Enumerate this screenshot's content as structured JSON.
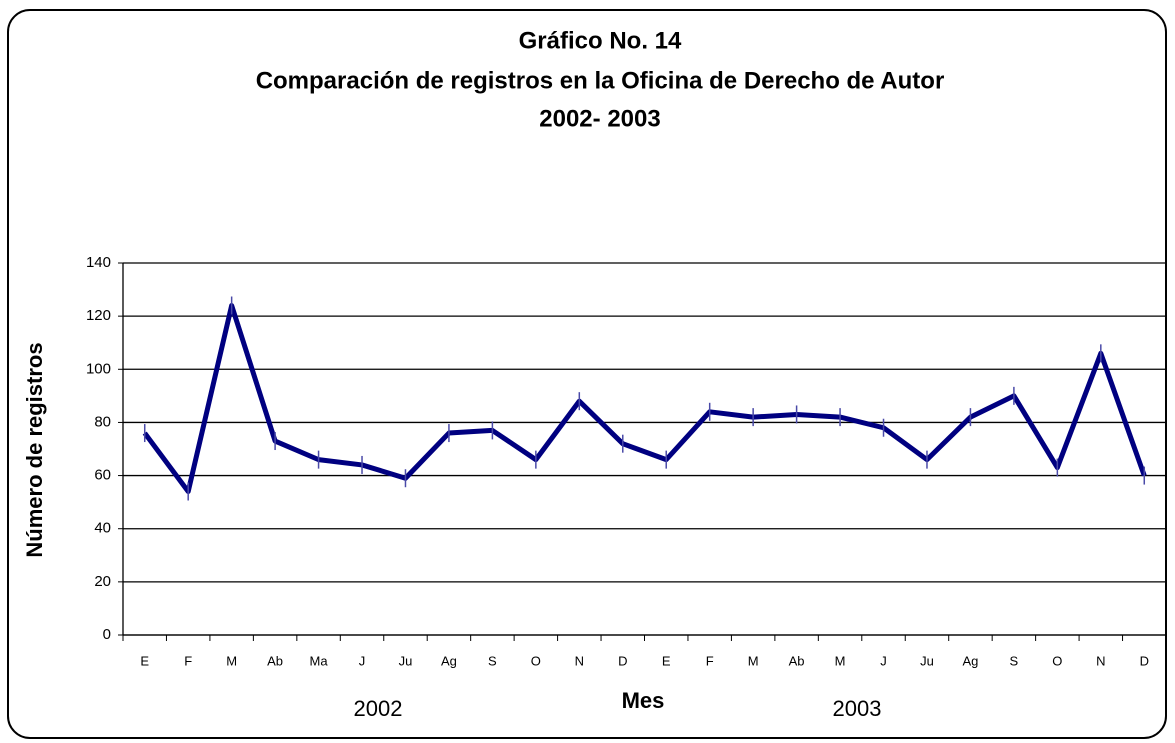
{
  "chart_data": {
    "type": "line",
    "title": [
      "Gráfico No. 14",
      "Comparación de registros en la Oficina de Derecho de Autor",
      "2002- 2003"
    ],
    "x_label": "Mes",
    "y_label": "Número de registros",
    "group_labels": [
      "2002",
      "2003"
    ],
    "categories": [
      "E",
      "F",
      "M",
      "Ab",
      "Ma",
      "J",
      "Ju",
      "Ag",
      "S",
      "O",
      "N",
      "D",
      "E",
      "F",
      "M",
      "Ab",
      "M",
      "J",
      "Ju",
      "Ag",
      "S",
      "O",
      "N",
      "D"
    ],
    "series": [
      {
        "name": "Registros",
        "color": "#000080",
        "values": [
          76,
          54,
          124,
          73,
          66,
          64,
          59,
          76,
          77,
          66,
          88,
          72,
          66,
          84,
          82,
          83,
          82,
          78,
          66,
          82,
          90,
          63,
          106,
          60
        ]
      }
    ],
    "ylim": [
      0,
      140
    ],
    "yticks": [
      0,
      20,
      40,
      60,
      80,
      100,
      120,
      140
    ],
    "grid": true
  }
}
